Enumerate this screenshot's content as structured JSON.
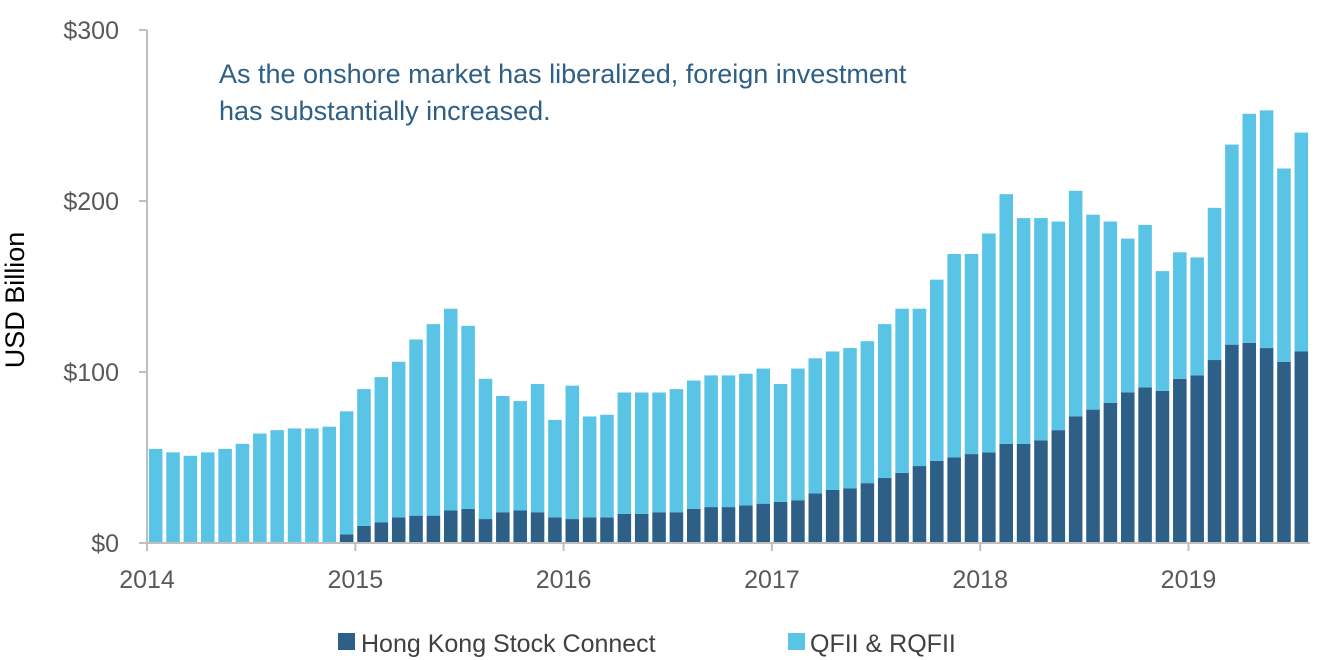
{
  "chart_data": {
    "type": "bar",
    "stacked": true,
    "title": "",
    "xlabel": "",
    "ylabel": "USD Billion",
    "ylim": [
      0,
      300
    ],
    "y_ticks": [
      "$0",
      "$100",
      "$200",
      "$300"
    ],
    "y_tick_values": [
      0,
      100,
      200,
      300
    ],
    "x_tick_labels": [
      "2014",
      "2015",
      "2016",
      "2017",
      "2018",
      "2019"
    ],
    "x_tick_start_index": [
      0,
      12,
      24,
      36,
      48,
      60
    ],
    "annotation": [
      "As the onshore market has liberalized, foreign investment",
      "has substantially increased."
    ],
    "legend_position": "bottom",
    "series": [
      {
        "name": "Hong Kong Stock Connect",
        "color": "#2e5f86",
        "values": [
          0,
          0,
          0,
          0,
          0,
          0,
          0,
          0,
          0,
          0,
          0,
          5,
          10,
          12,
          15,
          16,
          16,
          19,
          20,
          14,
          18,
          19,
          18,
          15,
          14,
          15,
          15,
          17,
          17,
          18,
          18,
          20,
          21,
          21,
          22,
          23,
          24,
          25,
          29,
          31,
          32,
          35,
          38,
          41,
          45,
          48,
          50,
          52,
          53,
          58,
          58,
          60,
          66,
          74,
          78,
          82,
          88,
          91,
          89,
          96,
          98,
          107,
          116,
          117,
          114,
          106,
          112
        ]
      },
      {
        "name": "QFII & RQFII",
        "color": "#59c4e6",
        "values": [
          55,
          53,
          51,
          53,
          55,
          58,
          64,
          66,
          67,
          67,
          68,
          72,
          80,
          85,
          91,
          103,
          112,
          118,
          107,
          82,
          68,
          64,
          75,
          57,
          78,
          59,
          60,
          71,
          71,
          70,
          72,
          75,
          77,
          77,
          77,
          79,
          69,
          77,
          79,
          81,
          82,
          83,
          90,
          96,
          92,
          106,
          119,
          117,
          128,
          146,
          132,
          130,
          122,
          132,
          114,
          106,
          90,
          95,
          70,
          74,
          69,
          89,
          117,
          134,
          139,
          113,
          128
        ]
      }
    ]
  }
}
